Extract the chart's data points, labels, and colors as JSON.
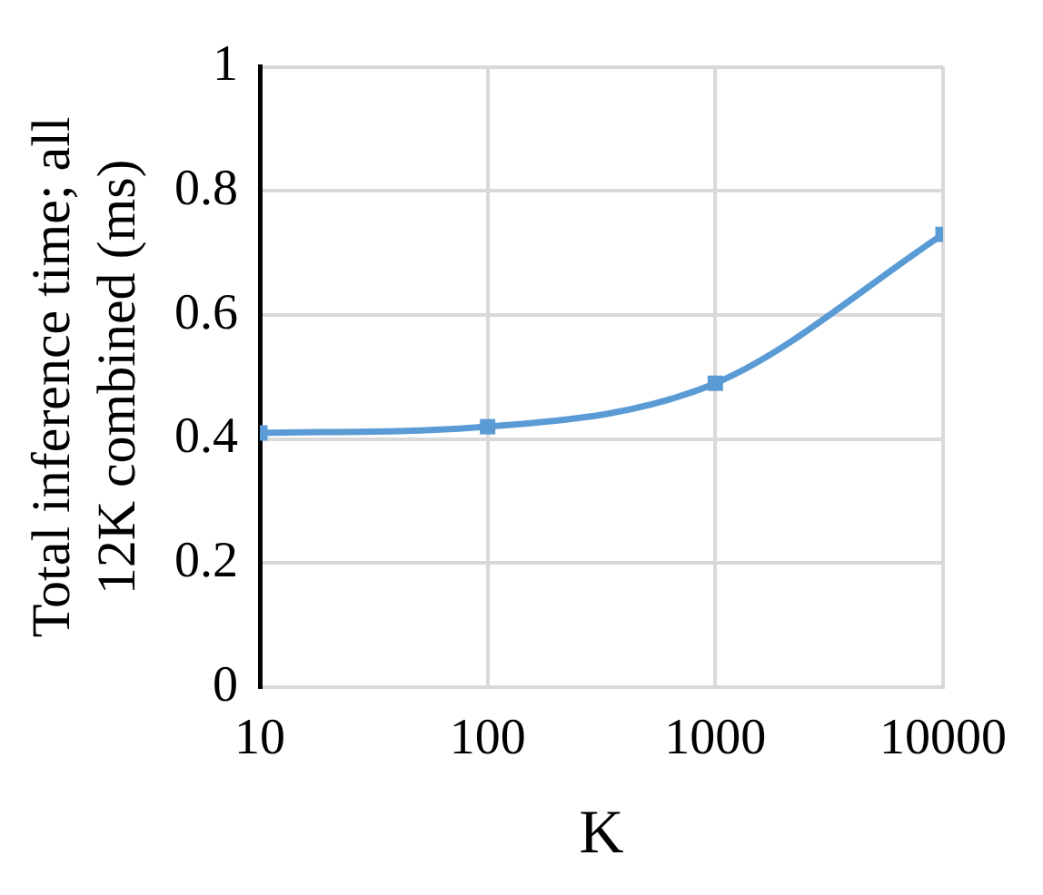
{
  "chart_data": {
    "type": "line",
    "xlabel": "K",
    "ylabel": "Total inference time; all\n12K combined (ms)",
    "log": "x",
    "x": [
      10,
      100,
      1000,
      10000
    ],
    "series": [
      {
        "color": "#5b9bd5",
        "values": [
          0.41,
          0.42,
          0.49,
          0.73
        ]
      }
    ],
    "xlim": [
      10,
      10000
    ],
    "xticks": [
      10,
      100,
      1000,
      10000
    ],
    "ylim": [
      0,
      1
    ],
    "yticks": [
      0,
      0.2,
      0.4,
      0.6,
      0.8,
      1
    ],
    "grid": true,
    "legend": false,
    "marker": "square",
    "line_style": "solid"
  }
}
